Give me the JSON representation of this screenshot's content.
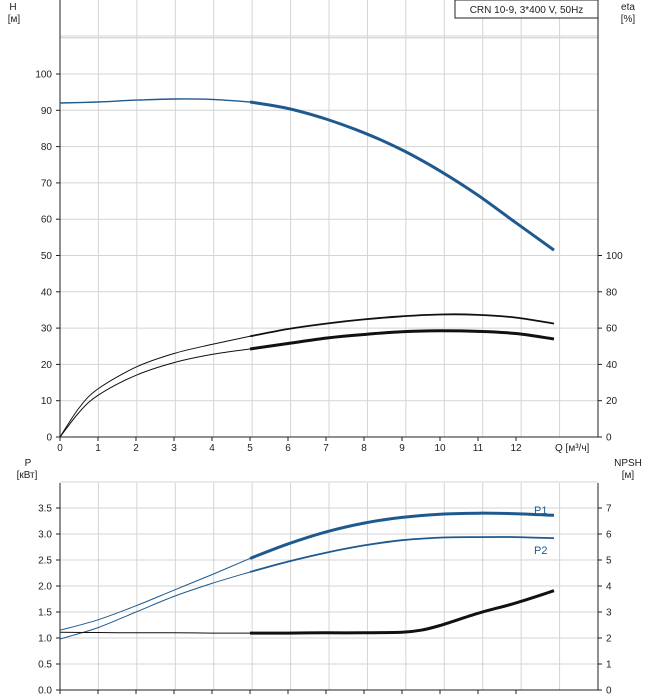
{
  "chart_data": [
    {
      "type": "line",
      "title": "CRN 10-9, 3*400 V, 50Hz",
      "xlabel": "Q [м³/ч]",
      "ylabel": "H [м]",
      "y2label": "eta [%]",
      "xlim": [
        0,
        14.4
      ],
      "ylim": [
        0,
        110
      ],
      "y2lim": [
        0,
        110
      ],
      "x_ticks": [
        "0",
        "1",
        "2",
        "3",
        "4",
        "5",
        "6",
        "7",
        "8",
        "9",
        "10",
        "11",
        "12"
      ],
      "y_ticks": [
        "0",
        "10",
        "20",
        "30",
        "40",
        "50",
        "60",
        "70",
        "80",
        "90",
        "100"
      ],
      "y2_ticks": [
        "0",
        "20",
        "40",
        "60",
        "80",
        "100"
      ],
      "grid": true,
      "series": [
        {
          "role": "H-curve",
          "color": "#1f5a8f",
          "x": [
            0,
            1,
            2,
            3,
            4,
            5,
            6,
            7,
            8,
            9,
            10,
            11,
            12,
            13
          ],
          "y": [
            92.0,
            92.3,
            92.8,
            93.1,
            93.0,
            92.3,
            90.5,
            87.6,
            83.8,
            79.1,
            73.3,
            66.6,
            59.0,
            51.5
          ]
        },
        {
          "role": "eta-curve",
          "color": "#111111",
          "x": [
            0,
            0.5,
            1,
            2,
            3,
            4,
            5,
            6,
            7,
            8,
            9,
            10,
            11,
            12,
            13
          ],
          "y": [
            0,
            16,
            26.5,
            38.5,
            46,
            51,
            55.5,
            59.5,
            62.5,
            64.8,
            66.5,
            67.5,
            67.3,
            65.8,
            62.5
          ]
        },
        {
          "role": "eta-curve-2",
          "color": "#111111",
          "x": [
            0,
            0.5,
            1,
            2,
            3,
            4,
            5,
            6,
            7,
            8,
            9,
            10,
            11,
            12,
            13
          ],
          "y": [
            0,
            13.5,
            23,
            34,
            41,
            45.5,
            48.5,
            51.5,
            54.5,
            56.5,
            58,
            58.5,
            58.2,
            57,
            54
          ]
        }
      ]
    },
    {
      "type": "line",
      "xlabel": "",
      "ylabel": "P [кВт]",
      "y2label": "NPSH [м]",
      "xlim": [
        0,
        14.4
      ],
      "ylim": [
        0,
        4
      ],
      "y2lim": [
        0,
        8
      ],
      "y_ticks": [
        "0.0",
        "0.5",
        "1.0",
        "1.5",
        "2.0",
        "2.5",
        "3.0",
        "3.5"
      ],
      "y2_ticks": [
        "0",
        "1",
        "2",
        "3",
        "4",
        "5",
        "6",
        "7"
      ],
      "grid": true,
      "series": [
        {
          "name": "P1",
          "color": "#1f5a8f",
          "x": [
            0,
            1,
            2,
            3,
            4,
            5,
            6,
            7,
            8,
            9,
            10,
            11,
            12,
            13
          ],
          "y": [
            1.15,
            1.35,
            1.62,
            1.92,
            2.22,
            2.53,
            2.81,
            3.04,
            3.21,
            3.32,
            3.38,
            3.4,
            3.39,
            3.36
          ]
        },
        {
          "name": "P2",
          "color": "#1f5a8f",
          "x": [
            0,
            1,
            2,
            3,
            4,
            5,
            6,
            7,
            8,
            9,
            10,
            11,
            12,
            13
          ],
          "y": [
            0.98,
            1.2,
            1.5,
            1.8,
            2.05,
            2.27,
            2.47,
            2.64,
            2.78,
            2.88,
            2.93,
            2.94,
            2.94,
            2.92
          ]
        },
        {
          "role": "NPSH-curve",
          "color": "#111111",
          "x": [
            0,
            1,
            2,
            3,
            4,
            5,
            6,
            7,
            8,
            9,
            9.5,
            10,
            11,
            12,
            13
          ],
          "y": [
            2.22,
            2.21,
            2.2,
            2.2,
            2.19,
            2.19,
            2.19,
            2.2,
            2.2,
            2.22,
            2.3,
            2.48,
            2.95,
            3.35,
            3.82
          ]
        }
      ]
    }
  ]
}
